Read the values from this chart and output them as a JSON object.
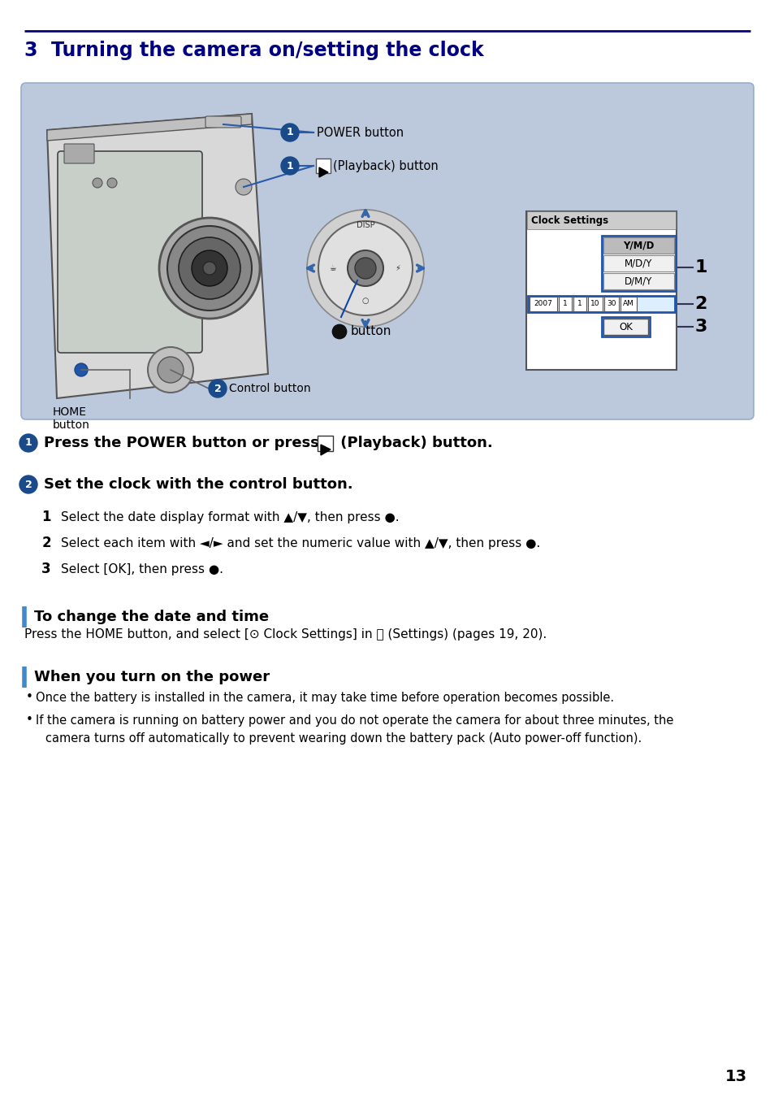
{
  "title": "3  Turning the camera on/setting the clock",
  "title_color": "#000080",
  "title_fontsize": 17,
  "bg_color": "#ffffff",
  "diagram_bg": "#bcc8dc",
  "header_line_color": "#000080",
  "page_number": "13",
  "step1_bold": "Press the POWER button or press",
  "step1_rest": " (Playback) button.",
  "step2_bold": "Set the clock with the control button.",
  "sub1": "Select the date display format with ▲/▼, then press ●.",
  "sub2": "Select each item with ◄/► and set the numeric value with ▲/▼, then press ●.",
  "sub3": "Select [OK], then press ●.",
  "section_change": "To change the date and time",
  "section_change_text": "Press the HOME button, and select [⊙ Clock Settings] in 💼 (Settings) (pages 19, 20).",
  "section_power": "When you turn on the power",
  "bullet1": "Once the battery is installed in the camera, it may take time before operation becomes possible.",
  "bullet2a": "If the camera is running on battery power and you do not operate the camera for about three minutes, the",
  "bullet2b": "camera turns off automatically to prevent wearing down the battery pack (Auto power-off function).",
  "label_power": "POWER button",
  "label_playback": "(Playback) button",
  "label_button": "button",
  "label_home": "HOME\nbutton",
  "label_control": "Control button",
  "label_clock": "Clock Settings",
  "clock_rows": [
    "Y/M/D",
    "M/D/Y",
    "D/M/Y"
  ],
  "clock_date": "2007  1   1   10 : 30 AM",
  "clock_ok": "OK",
  "badge_color": "#1a4a8a",
  "line_blue": "#2a5aaa",
  "section_bar_color": "#4488cc"
}
